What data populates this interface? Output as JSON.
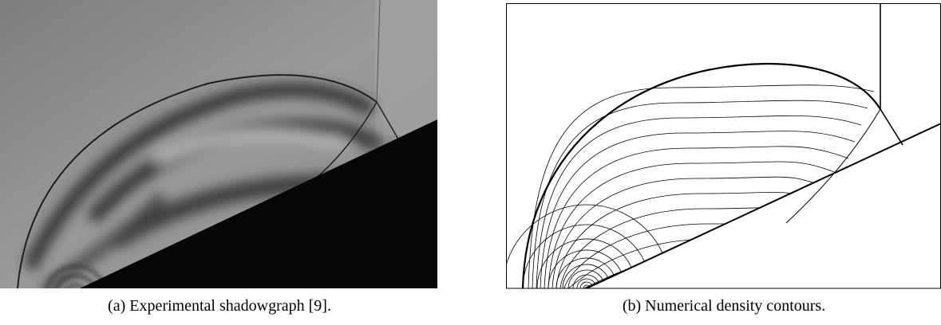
{
  "figure": {
    "panels": [
      {
        "caption": "(a) Experimental shadowgraph [9]."
      },
      {
        "caption": "(b) Numerical density contours."
      }
    ]
  }
}
